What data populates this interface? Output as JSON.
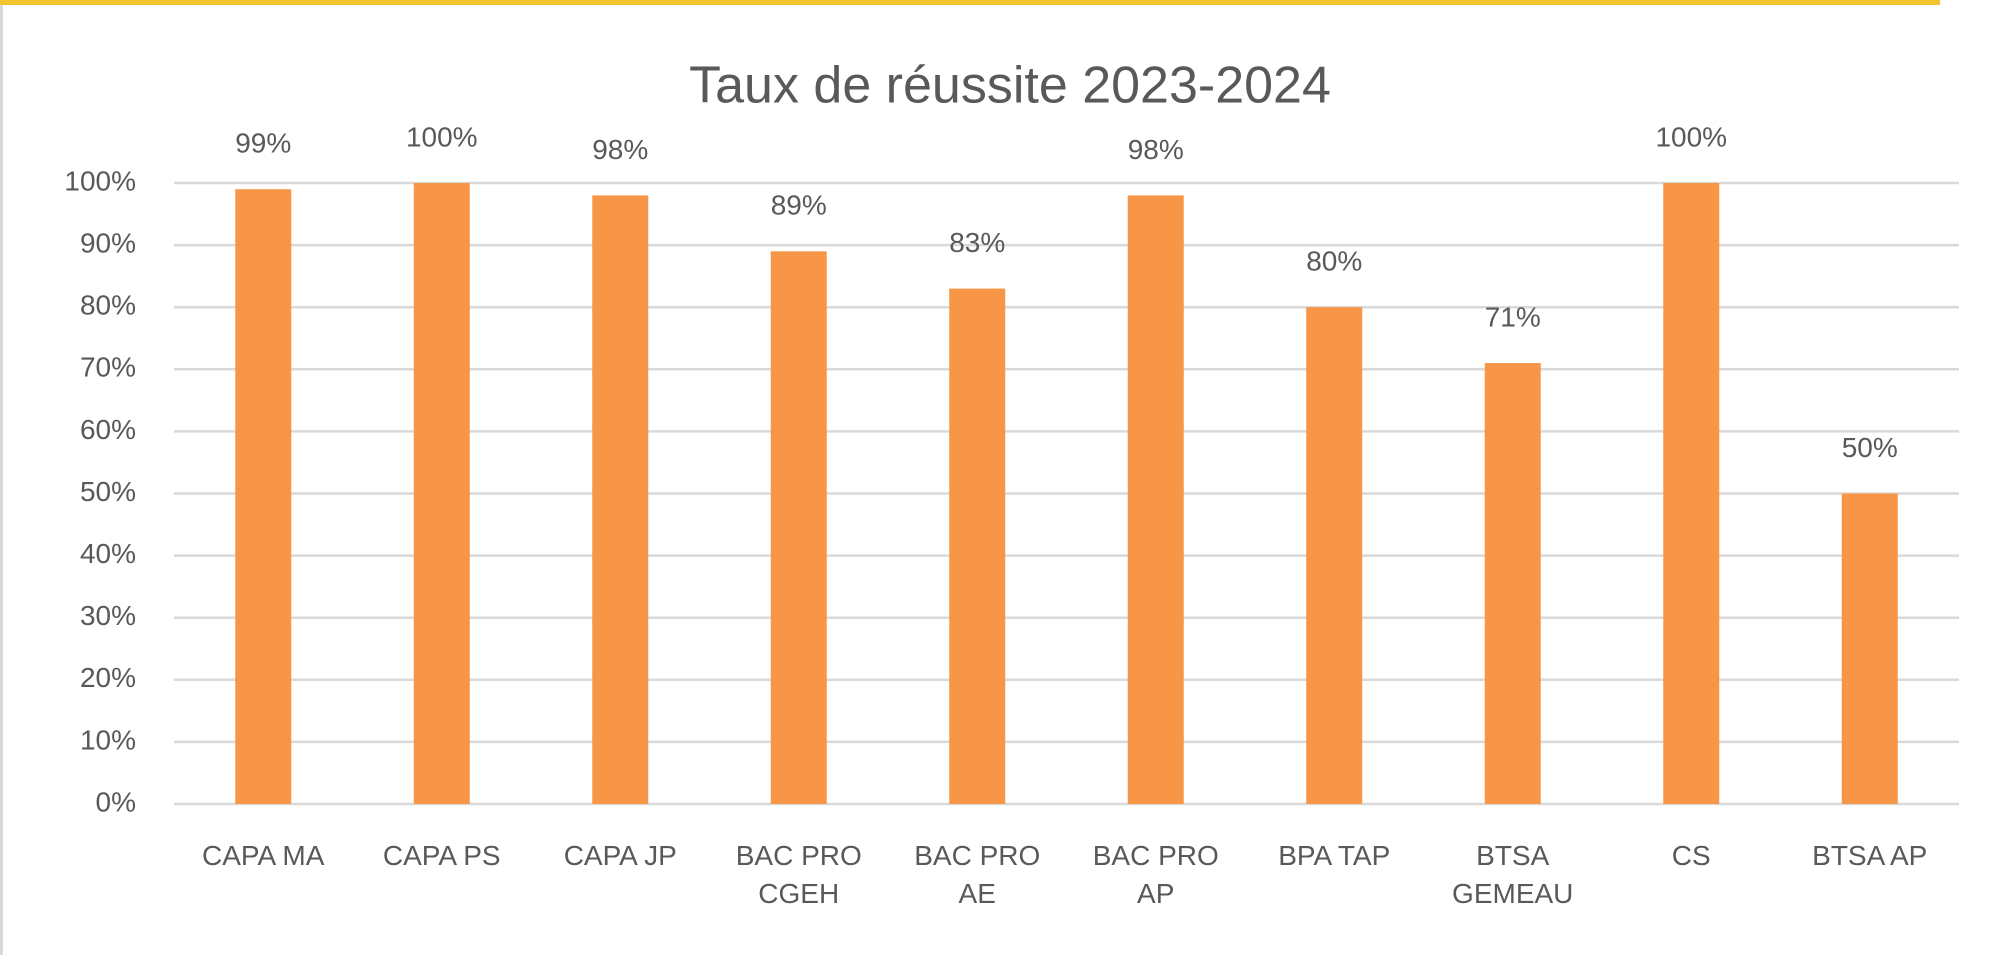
{
  "chart_data": {
    "type": "bar",
    "title": "Taux de réussite 2023-2024",
    "categories": [
      "CAPA MA",
      "CAPA PS",
      "CAPA JP",
      "BAC PRO CGEH",
      "BAC PRO AE",
      "BAC PRO AP",
      "BPA TAP",
      "BTSA GEMEAU",
      "CS",
      "BTSA AP"
    ],
    "values": [
      99,
      100,
      98,
      89,
      83,
      98,
      80,
      71,
      100,
      50
    ],
    "value_labels": [
      "99%",
      "100%",
      "98%",
      "89%",
      "83%",
      "98%",
      "80%",
      "71%",
      "100%",
      "50%"
    ],
    "color": "#f79646",
    "ylim": [
      0,
      100
    ],
    "yticks": [
      {
        "value": 0,
        "label": "0%"
      },
      {
        "value": 10,
        "label": "10%"
      },
      {
        "value": 20,
        "label": "20%"
      },
      {
        "value": 30,
        "label": "30%"
      },
      {
        "value": 40,
        "label": "40%"
      },
      {
        "value": 50,
        "label": "50%"
      },
      {
        "value": 60,
        "label": "60%"
      },
      {
        "value": 70,
        "label": "70%"
      },
      {
        "value": 80,
        "label": "80%"
      },
      {
        "value": 90,
        "label": "90%"
      },
      {
        "value": 100,
        "label": "100%"
      }
    ],
    "grid": true
  }
}
